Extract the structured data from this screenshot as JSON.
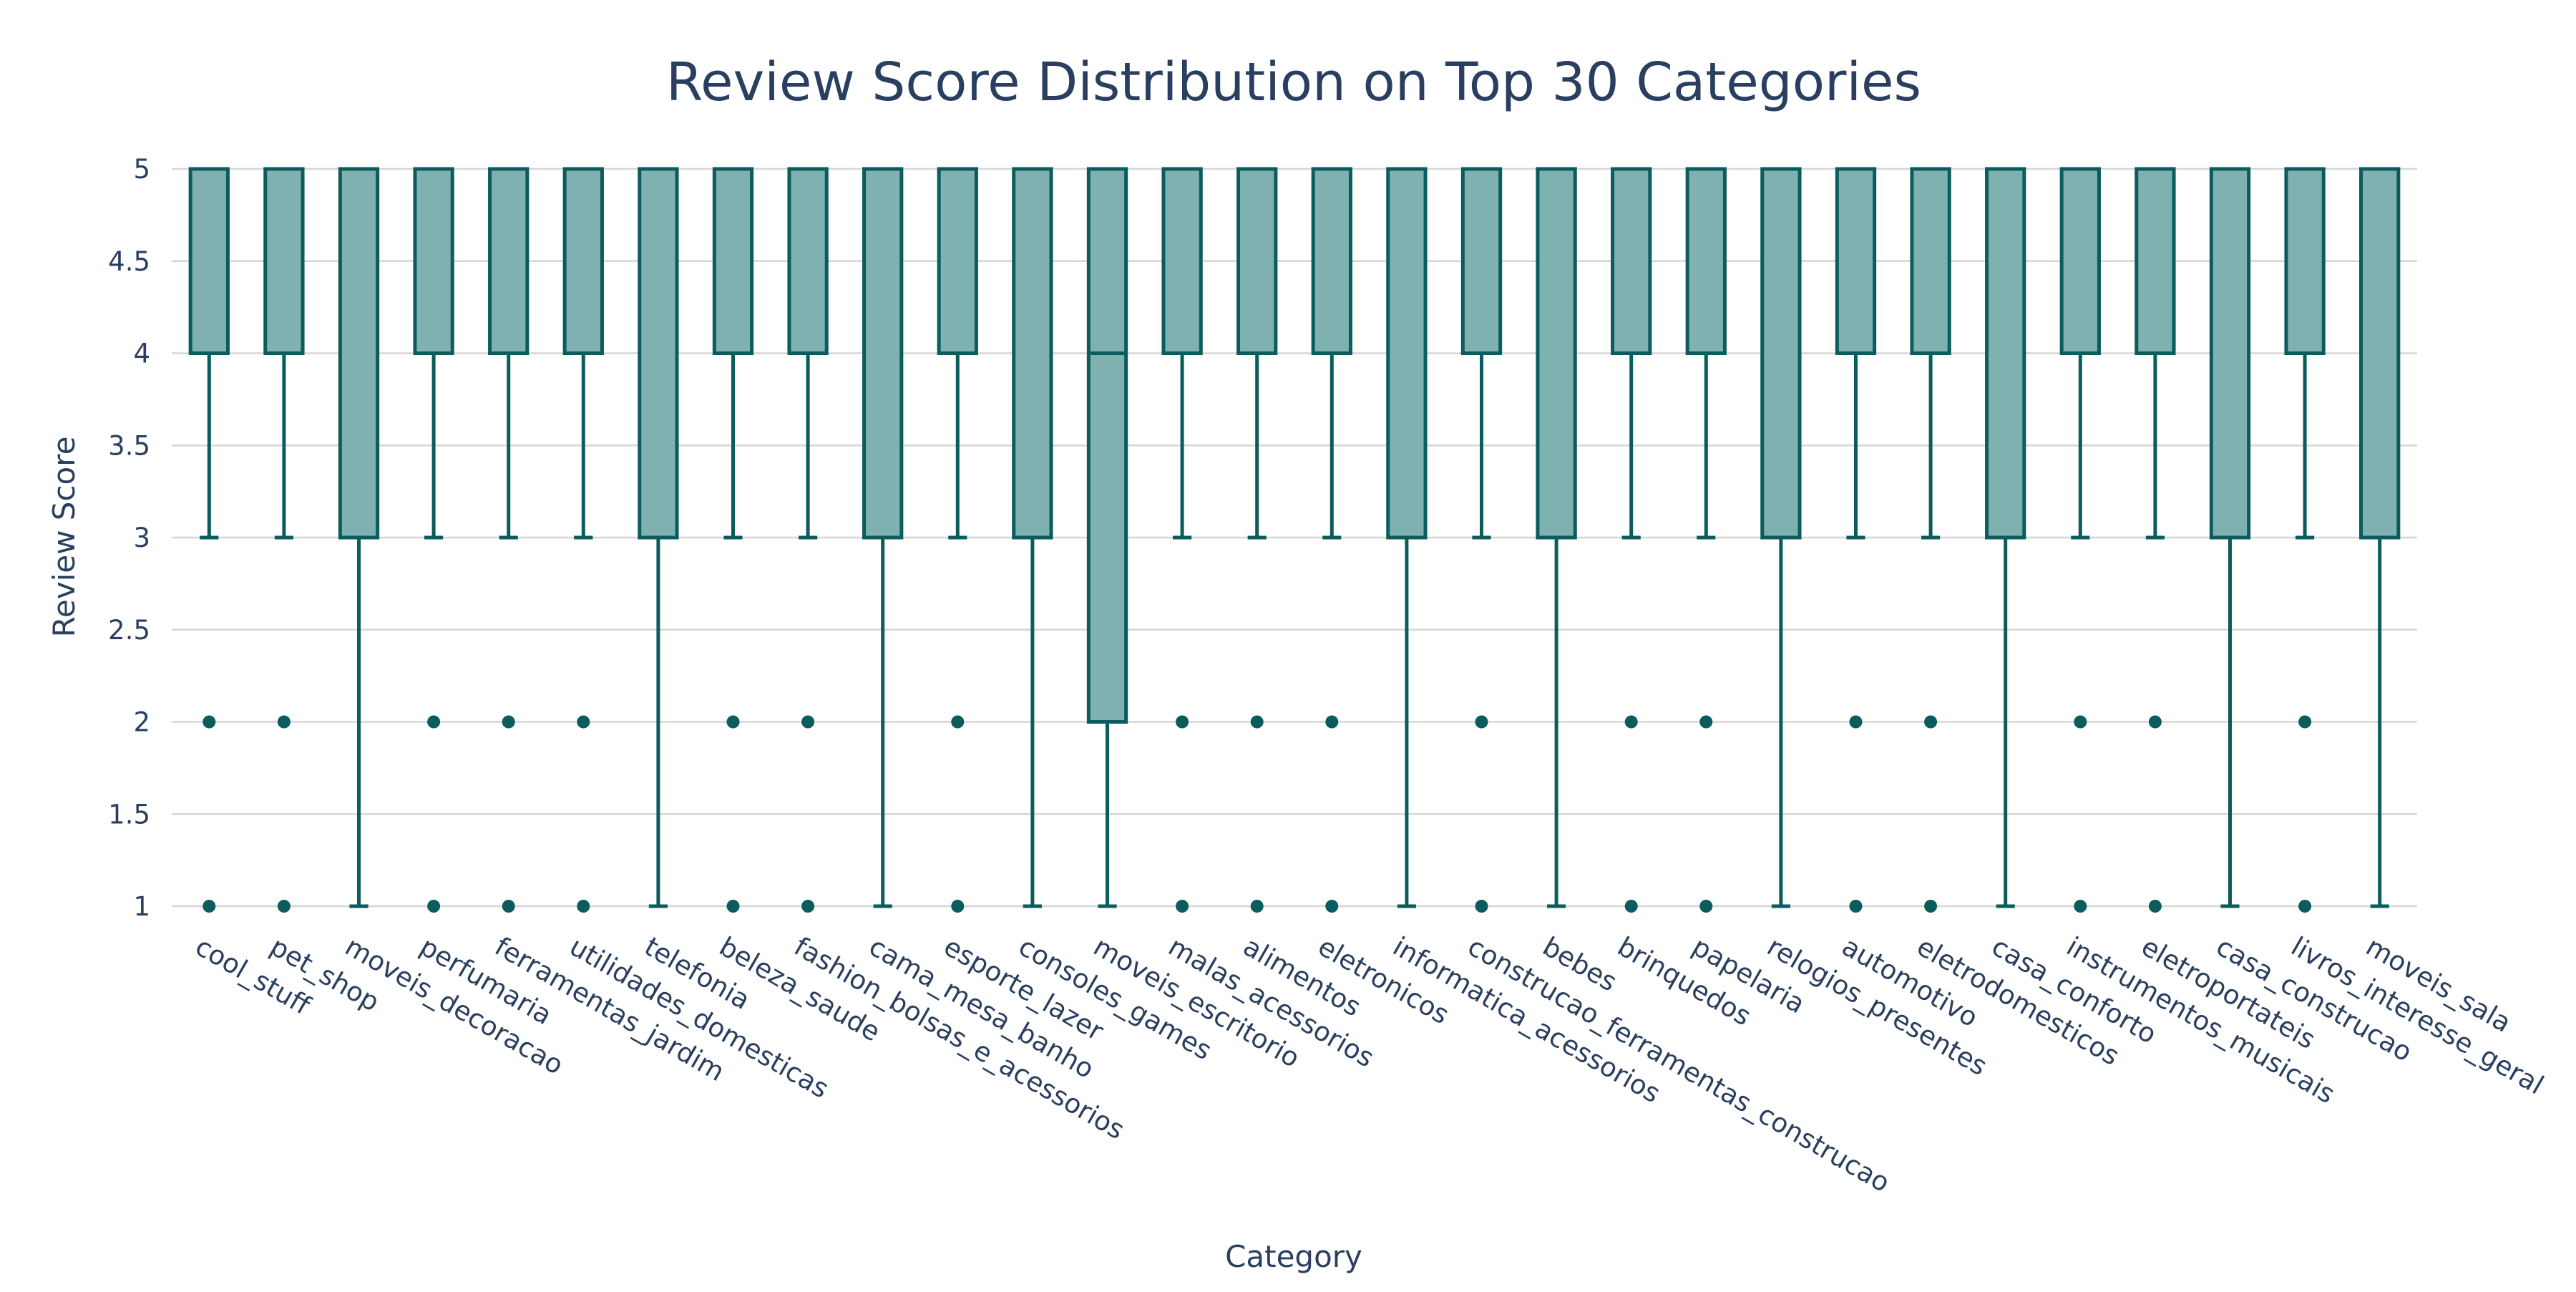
{
  "chart_data": {
    "type": "box",
    "title": "Review Score Distribution on Top 30 Categories",
    "xlabel": "Category",
    "ylabel": "Review Score",
    "ylim": [
      1,
      5
    ],
    "yticks": [
      1,
      1.5,
      2,
      2.5,
      3,
      3.5,
      4,
      4.5,
      5
    ],
    "ytick_labels": [
      "1",
      "1.5",
      "2",
      "2.5",
      "3",
      "3.5",
      "4",
      "4.5",
      "5"
    ],
    "grid": true,
    "legend": "none",
    "colors": {
      "fill": "#7fb1b0",
      "line": "#0b5c5c",
      "title": "#2a3f5f",
      "grid": "#d6d6d6"
    },
    "categories": [
      "cool_stuff",
      "pet_shop",
      "moveis_decoracao",
      "perfumaria",
      "ferramentas_jardim",
      "utilidades_domesticas",
      "telefonia",
      "beleza_saude",
      "fashion_bolsas_e_acessorios",
      "cama_mesa_banho",
      "esporte_lazer",
      "consoles_games",
      "moveis_escritorio",
      "malas_acessorios",
      "alimentos",
      "eletronicos",
      "informatica_acessorios",
      "construcao_ferramentas_construcao",
      "bebes",
      "brinquedos",
      "papelaria",
      "relogios_presentes",
      "automotivo",
      "eletrodomesticos",
      "casa_conforto",
      "instrumentos_musicais",
      "eletroportateis",
      "casa_construcao",
      "livros_interesse_geral",
      "moveis_sala"
    ],
    "boxes": [
      {
        "q1": 4,
        "median": 5,
        "q3": 5,
        "lowerfence": 3,
        "upperfence": 5,
        "outliers": [
          2,
          1
        ]
      },
      {
        "q1": 4,
        "median": 5,
        "q3": 5,
        "lowerfence": 3,
        "upperfence": 5,
        "outliers": [
          2,
          1
        ]
      },
      {
        "q1": 3,
        "median": 5,
        "q3": 5,
        "lowerfence": 1,
        "upperfence": 5,
        "outliers": []
      },
      {
        "q1": 4,
        "median": 5,
        "q3": 5,
        "lowerfence": 3,
        "upperfence": 5,
        "outliers": [
          2,
          1
        ]
      },
      {
        "q1": 4,
        "median": 5,
        "q3": 5,
        "lowerfence": 3,
        "upperfence": 5,
        "outliers": [
          2,
          1
        ]
      },
      {
        "q1": 4,
        "median": 5,
        "q3": 5,
        "lowerfence": 3,
        "upperfence": 5,
        "outliers": [
          2,
          1
        ]
      },
      {
        "q1": 3,
        "median": 5,
        "q3": 5,
        "lowerfence": 1,
        "upperfence": 5,
        "outliers": []
      },
      {
        "q1": 4,
        "median": 5,
        "q3": 5,
        "lowerfence": 3,
        "upperfence": 5,
        "outliers": [
          2,
          1
        ]
      },
      {
        "q1": 4,
        "median": 5,
        "q3": 5,
        "lowerfence": 3,
        "upperfence": 5,
        "outliers": [
          2,
          1
        ]
      },
      {
        "q1": 3,
        "median": 5,
        "q3": 5,
        "lowerfence": 1,
        "upperfence": 5,
        "outliers": []
      },
      {
        "q1": 4,
        "median": 5,
        "q3": 5,
        "lowerfence": 3,
        "upperfence": 5,
        "outliers": [
          2,
          1
        ]
      },
      {
        "q1": 3,
        "median": 5,
        "q3": 5,
        "lowerfence": 1,
        "upperfence": 5,
        "outliers": []
      },
      {
        "q1": 2,
        "median": 4,
        "q3": 5,
        "lowerfence": 1,
        "upperfence": 5,
        "outliers": []
      },
      {
        "q1": 4,
        "median": 5,
        "q3": 5,
        "lowerfence": 3,
        "upperfence": 5,
        "outliers": [
          2,
          1
        ]
      },
      {
        "q1": 4,
        "median": 5,
        "q3": 5,
        "lowerfence": 3,
        "upperfence": 5,
        "outliers": [
          2,
          1
        ]
      },
      {
        "q1": 4,
        "median": 5,
        "q3": 5,
        "lowerfence": 3,
        "upperfence": 5,
        "outliers": [
          2,
          1
        ]
      },
      {
        "q1": 3,
        "median": 5,
        "q3": 5,
        "lowerfence": 1,
        "upperfence": 5,
        "outliers": []
      },
      {
        "q1": 4,
        "median": 5,
        "q3": 5,
        "lowerfence": 3,
        "upperfence": 5,
        "outliers": [
          2,
          1
        ]
      },
      {
        "q1": 3,
        "median": 5,
        "q3": 5,
        "lowerfence": 1,
        "upperfence": 5,
        "outliers": []
      },
      {
        "q1": 4,
        "median": 5,
        "q3": 5,
        "lowerfence": 3,
        "upperfence": 5,
        "outliers": [
          2,
          1
        ]
      },
      {
        "q1": 4,
        "median": 5,
        "q3": 5,
        "lowerfence": 3,
        "upperfence": 5,
        "outliers": [
          2,
          1
        ]
      },
      {
        "q1": 3,
        "median": 5,
        "q3": 5,
        "lowerfence": 1,
        "upperfence": 5,
        "outliers": []
      },
      {
        "q1": 4,
        "median": 5,
        "q3": 5,
        "lowerfence": 3,
        "upperfence": 5,
        "outliers": [
          2,
          1
        ]
      },
      {
        "q1": 4,
        "median": 5,
        "q3": 5,
        "lowerfence": 3,
        "upperfence": 5,
        "outliers": [
          2,
          1
        ]
      },
      {
        "q1": 3,
        "median": 5,
        "q3": 5,
        "lowerfence": 1,
        "upperfence": 5,
        "outliers": []
      },
      {
        "q1": 4,
        "median": 5,
        "q3": 5,
        "lowerfence": 3,
        "upperfence": 5,
        "outliers": [
          2,
          1
        ]
      },
      {
        "q1": 4,
        "median": 5,
        "q3": 5,
        "lowerfence": 3,
        "upperfence": 5,
        "outliers": [
          2,
          1
        ]
      },
      {
        "q1": 3,
        "median": 5,
        "q3": 5,
        "lowerfence": 1,
        "upperfence": 5,
        "outliers": []
      },
      {
        "q1": 4,
        "median": 5,
        "q3": 5,
        "lowerfence": 3,
        "upperfence": 5,
        "outliers": [
          2,
          1
        ]
      },
      {
        "q1": 3,
        "median": 5,
        "q3": 5,
        "lowerfence": 1,
        "upperfence": 5,
        "outliers": []
      }
    ]
  }
}
